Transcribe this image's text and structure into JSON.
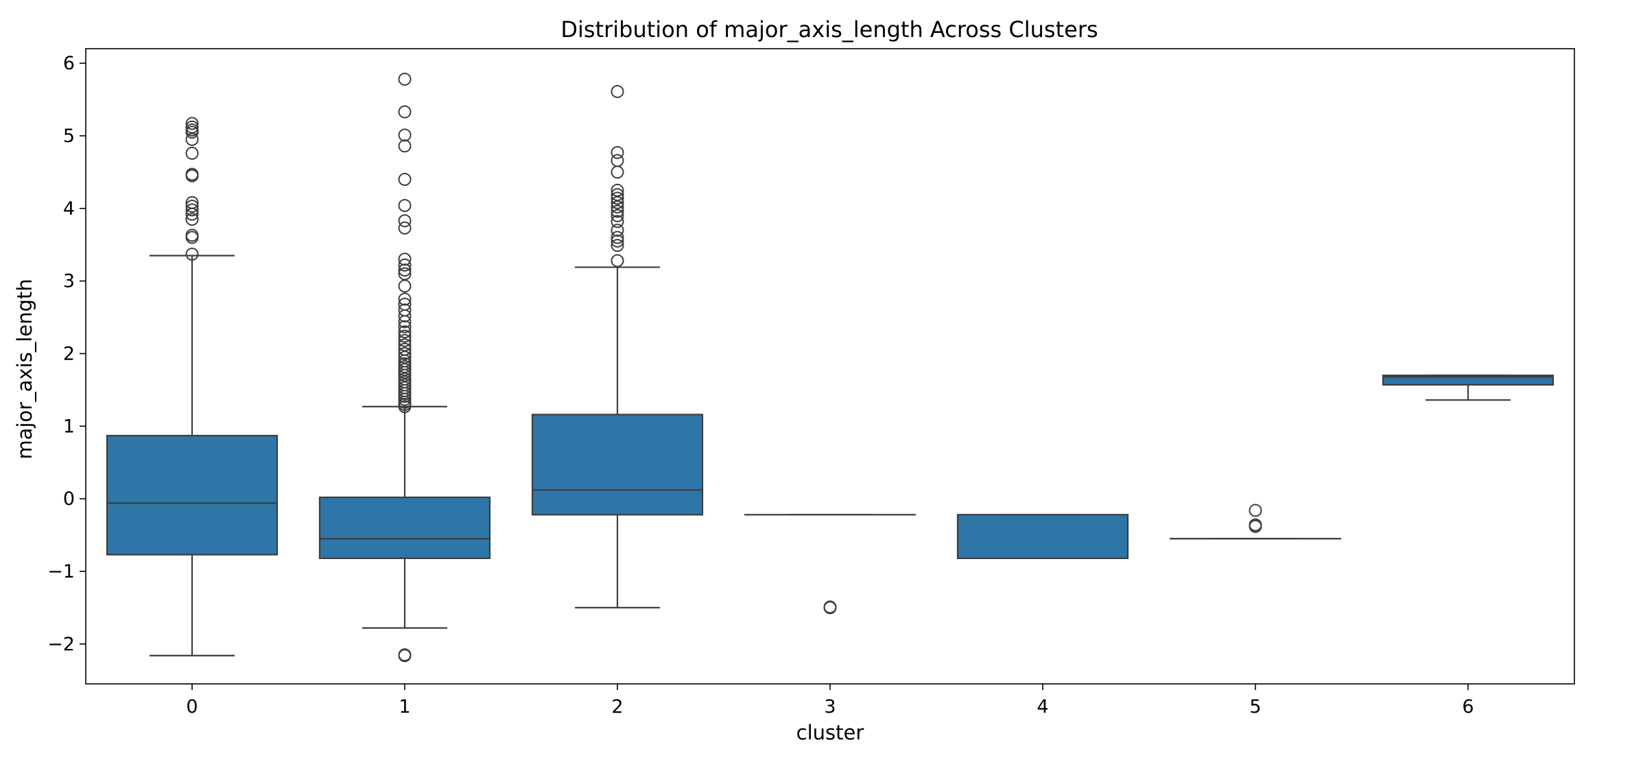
{
  "chart_data": {
    "type": "box",
    "title": "Distribution of major_axis_length Across Clusters",
    "xlabel": "cluster",
    "ylabel": "major_axis_length",
    "categories": [
      "0",
      "1",
      "2",
      "3",
      "4",
      "5",
      "6"
    ],
    "y_ticks": [
      -2,
      -1,
      0,
      1,
      2,
      3,
      4,
      5,
      6
    ],
    "y_tick_labels": [
      "−2",
      "−1",
      "0",
      "1",
      "2",
      "3",
      "4",
      "5",
      "6"
    ],
    "ylim": [
      -2.55,
      6.2
    ],
    "grid": false,
    "legend": "none",
    "box_color": "#2e75a8",
    "edge_color": "#3d3d3d",
    "boxes": [
      {
        "cluster": "0",
        "whisker_low": -2.16,
        "q1": -0.77,
        "median": -0.06,
        "q3": 0.87,
        "whisker_high": 3.35,
        "outliers": [
          3.37,
          3.6,
          3.63,
          3.85,
          3.92,
          3.98,
          4.03,
          4.08,
          4.45,
          4.47,
          4.76,
          4.95,
          5.05,
          5.08,
          5.12,
          5.17
        ]
      },
      {
        "cluster": "1",
        "whisker_low": -1.78,
        "q1": -0.82,
        "median": -0.55,
        "q3": 0.02,
        "whisker_high": 1.27,
        "outliers": [
          -2.16,
          -2.15,
          1.27,
          1.3,
          1.33,
          1.37,
          1.41,
          1.45,
          1.49,
          1.53,
          1.57,
          1.61,
          1.65,
          1.7,
          1.74,
          1.78,
          1.82,
          1.86,
          1.9,
          1.95,
          2.0,
          2.06,
          2.12,
          2.18,
          2.24,
          2.3,
          2.37,
          2.44,
          2.52,
          2.6,
          2.68,
          2.75,
          2.93,
          3.1,
          3.15,
          3.22,
          3.3,
          3.73,
          3.83,
          4.04,
          4.4,
          4.86,
          5.01,
          5.33,
          5.78
        ]
      },
      {
        "cluster": "2",
        "whisker_low": -1.5,
        "q1": -0.22,
        "median": 0.12,
        "q3": 1.16,
        "whisker_high": 3.19,
        "outliers": [
          3.28,
          3.49,
          3.55,
          3.6,
          3.7,
          3.82,
          3.9,
          3.96,
          4.02,
          4.08,
          4.14,
          4.19,
          4.25,
          4.5,
          4.66,
          4.77,
          5.61
        ]
      },
      {
        "cluster": "3",
        "whisker_low": -0.22,
        "q1": -0.22,
        "median": -0.22,
        "q3": -0.22,
        "whisker_high": -0.22,
        "outliers": [
          -1.49,
          -1.5
        ]
      },
      {
        "cluster": "4",
        "whisker_low": -0.82,
        "q1": -0.82,
        "median": -0.22,
        "q3": -0.22,
        "whisker_high": -0.22,
        "outliers": []
      },
      {
        "cluster": "5",
        "whisker_low": -0.55,
        "q1": -0.55,
        "median": -0.55,
        "q3": -0.55,
        "whisker_high": -0.55,
        "outliers": [
          -0.16,
          -0.36,
          -0.38
        ]
      },
      {
        "cluster": "6",
        "whisker_low": 1.36,
        "q1": 1.57,
        "median": 1.68,
        "q3": 1.7,
        "whisker_high": 1.7,
        "outliers": []
      }
    ]
  }
}
